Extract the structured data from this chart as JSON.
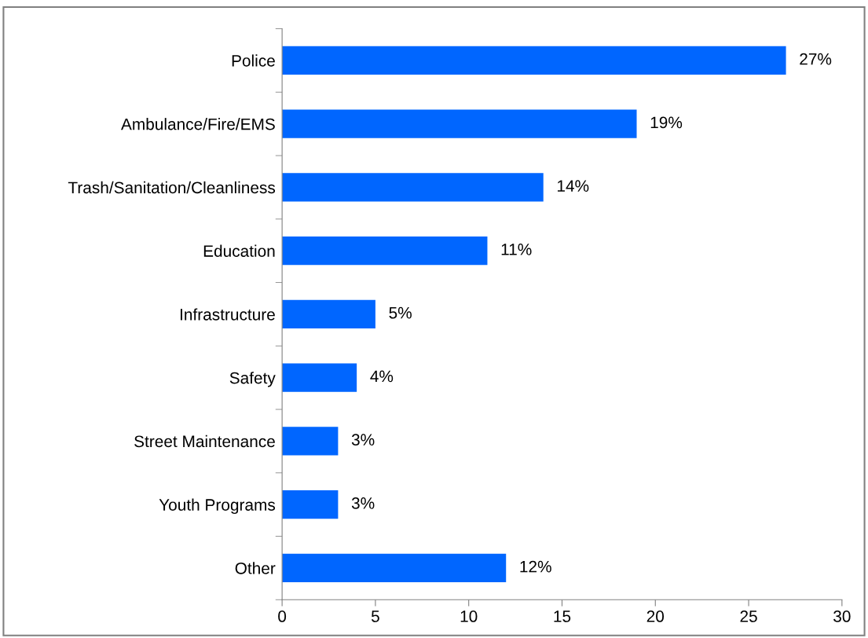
{
  "chart_data": {
    "type": "bar",
    "orientation": "horizontal",
    "categories": [
      "Police",
      "Ambulance/Fire/EMS",
      "Trash/Sanitation/Cleanliness",
      "Education",
      "Infrastructure",
      "Safety",
      "Street Maintenance",
      "Youth Programs",
      "Other"
    ],
    "values": [
      27,
      19,
      14,
      11,
      5,
      4,
      3,
      3,
      12
    ],
    "value_labels": [
      "27%",
      "19%",
      "14%",
      "11%",
      "5%",
      "4%",
      "3%",
      "3%",
      "12%"
    ],
    "color": "#0066ff",
    "xlim": [
      0,
      30
    ],
    "xticks": [
      0,
      5,
      10,
      15,
      20,
      25,
      30
    ],
    "grid": false,
    "legend": false
  }
}
